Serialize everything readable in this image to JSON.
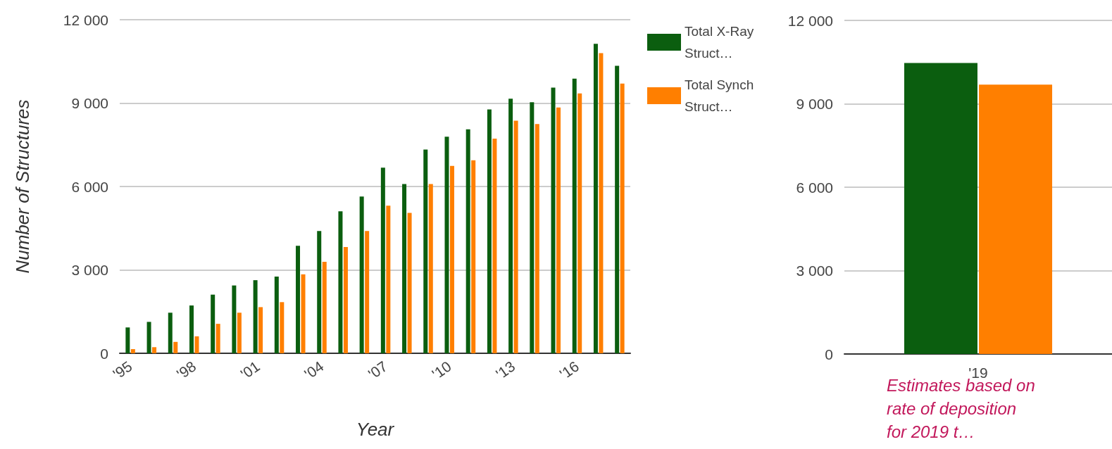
{
  "chart_data": [
    {
      "type": "bar",
      "xlabel": "Year",
      "ylabel": "Number of Structures",
      "categories": [
        "'95",
        null,
        null,
        "'98",
        null,
        null,
        "'01",
        null,
        null,
        "'04",
        null,
        null,
        "'07",
        null,
        null,
        "'10",
        null,
        null,
        "'13",
        null,
        null,
        "'16",
        null,
        null
      ],
      "series": [
        {
          "name": "Total X-Ray Struct…",
          "color": "#0b5e0f",
          "values": [
            930,
            1130,
            1460,
            1720,
            2110,
            2440,
            2630,
            2760,
            3870,
            4400,
            5110,
            5640,
            6680,
            6090,
            7330,
            7790,
            8060,
            8770,
            9160,
            9030,
            9560,
            9880,
            11130,
            10340
          ]
        },
        {
          "name": "Total Synch Struct…",
          "color": "#ff7f00",
          "values": [
            150,
            220,
            410,
            610,
            1060,
            1460,
            1660,
            1840,
            2840,
            3290,
            3820,
            4400,
            5310,
            5050,
            6090,
            6740,
            6940,
            7720,
            8370,
            8250,
            8840,
            9350,
            10800,
            9700
          ]
        }
      ],
      "ylim": [
        0,
        12000
      ],
      "yticks": [
        {
          "value": 0,
          "label": "0"
        },
        {
          "value": 3000,
          "label": "3 000"
        },
        {
          "value": 6000,
          "label": "6 000"
        },
        {
          "value": 9000,
          "label": "9 000"
        },
        {
          "value": 12000,
          "label": "12 000"
        }
      ],
      "grid": "y",
      "legend": "right"
    },
    {
      "type": "bar",
      "categories": [
        "'19"
      ],
      "series": [
        {
          "color": "#0b5e0f",
          "values": [
            10470
          ]
        },
        {
          "color": "#ff7f00",
          "values": [
            9690
          ]
        }
      ],
      "ylim": [
        0,
        12000
      ],
      "yticks": [
        {
          "value": 0,
          "label": "0"
        },
        {
          "value": 3000,
          "label": "3 000"
        },
        {
          "value": 6000,
          "label": "6 000"
        },
        {
          "value": 9000,
          "label": "9 000"
        },
        {
          "value": 12000,
          "label": "12 000"
        }
      ],
      "grid": "y",
      "annotations": [
        "Estimates based on rate of deposition for 2019 t…"
      ]
    }
  ]
}
